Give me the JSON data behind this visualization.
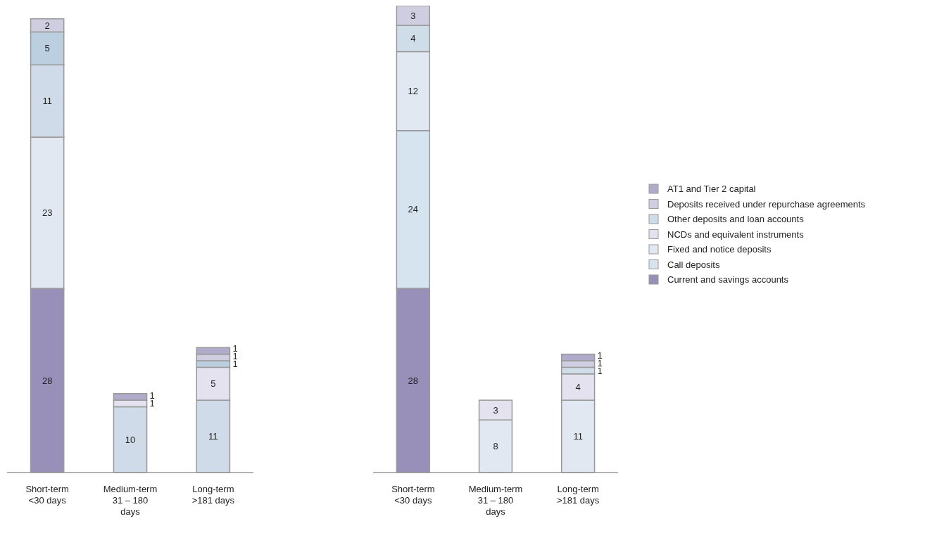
{
  "chart_data": [
    {
      "type": "bar",
      "stacked": true,
      "data_labels": true,
      "legend": false,
      "categories": [
        "Short-term\n<30 days",
        "Medium-term\n31 – 180\ndays",
        "Long-term\n>181 days"
      ],
      "series": [
        {
          "color": "#9890b8",
          "values": [
            28,
            null,
            null
          ]
        },
        {
          "color": "#e1e8f2",
          "values": [
            23,
            null,
            null
          ]
        },
        {
          "color": "#cfdbe8",
          "values": [
            11,
            10,
            11
          ]
        },
        {
          "color": "#e3e2ee",
          "values": [
            null,
            1,
            5
          ]
        },
        {
          "color": "#bccfe1",
          "values": [
            5,
            null,
            1
          ]
        },
        {
          "color": "#cfcde0",
          "values": [
            2,
            null,
            1
          ]
        },
        {
          "color": "#b0aacb",
          "values": [
            null,
            1,
            1
          ]
        }
      ]
    },
    {
      "type": "bar",
      "stacked": true,
      "data_labels": true,
      "legend": "right",
      "categories": [
        "Short-term\n<30 days",
        "Medium-term\n31 – 180\ndays",
        "Long-term\n>181 days"
      ],
      "series": [
        {
          "name": "Current and savings accounts",
          "color": "#9890b8",
          "values": [
            28,
            null,
            null
          ]
        },
        {
          "name": "Call deposits",
          "color": "#d6e4ef",
          "values": [
            24,
            null,
            null
          ]
        },
        {
          "name": "Fixed and notice deposits",
          "color": "#e1e8f2",
          "values": [
            12,
            8,
            11
          ]
        },
        {
          "name": "NCDs and equivalent instruments",
          "color": "#e3e2ee",
          "values": [
            null,
            3,
            4
          ]
        },
        {
          "name": "Other deposits and loan accounts",
          "color": "#cfdde9",
          "values": [
            4,
            null,
            1
          ]
        },
        {
          "name": "Deposits received under repurchase agreements",
          "color": "#cfcde0",
          "values": [
            3,
            null,
            1
          ]
        },
        {
          "name": "AT1 and Tier 2 capital",
          "color": "#b0aacb",
          "values": [
            null,
            null,
            1
          ]
        }
      ]
    }
  ]
}
